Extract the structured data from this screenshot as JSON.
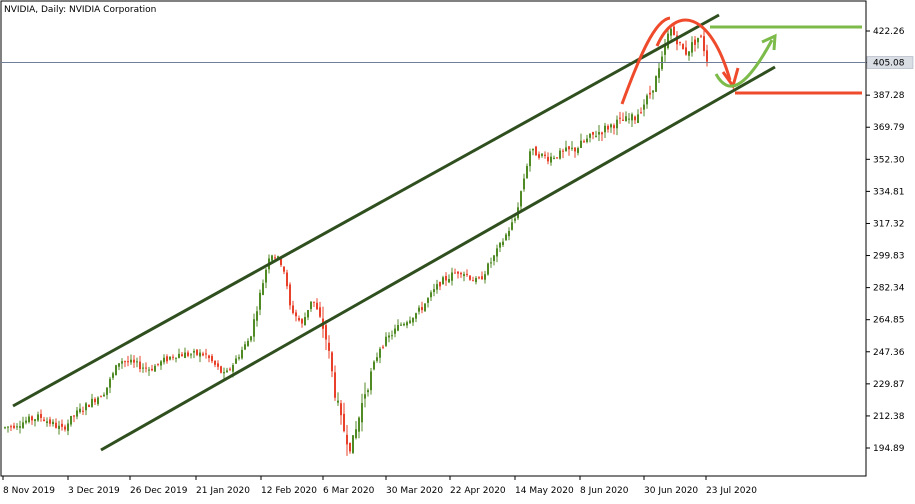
{
  "header": {
    "title": "NVIDIA, Daily:  NVIDIA Corporation"
  },
  "colors": {
    "bull": "#4f8a24",
    "bear": "#e8402a",
    "channel": "#2f4f1f",
    "hline": "#6f7f99",
    "green_level": "#7cba4a",
    "red_level": "#ee4a2b",
    "price_box": "#d9dde4"
  },
  "chart_data": {
    "type": "candlestick",
    "title": "NVIDIA, Daily:  NVIDIA Corporation",
    "x_ticks": [
      "8 Nov 2019",
      "3 Dec 2019",
      "26 Dec 2019",
      "21 Jan 2020",
      "12 Feb 2020",
      "6 Mar 2020",
      "30 Mar 2020",
      "22 Apr 2020",
      "14 May 2020",
      "8 Jun 2020",
      "30 Jun 2020",
      "23 Jul 2020"
    ],
    "y_ticks": [
      422.26,
      405.08,
      387.28,
      369.79,
      352.3,
      334.81,
      317.32,
      299.83,
      282.34,
      264.85,
      247.36,
      229.87,
      212.38,
      194.89
    ],
    "current_price": "405.08",
    "ylim": [
      184.4,
      436.2
    ],
    "channel": {
      "upper": {
        "from": [
          "8 Nov 2019",
          215
        ],
        "to": [
          "23 Jul 2020",
          436
        ]
      },
      "lower": {
        "from": [
          "3 Dec 2019",
          192
        ],
        "to": [
          "23 Jul 2020",
          398
        ]
      }
    },
    "resistance_level": 422.26,
    "support_level": 387.8,
    "candles": []
  }
}
